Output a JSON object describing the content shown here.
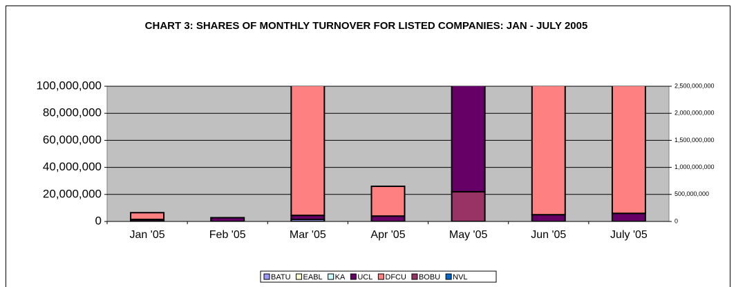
{
  "chart_data": {
    "type": "stacked_bar",
    "title": "CHART 3: SHARES OF MONTHLY TURNOVER FOR LISTED COMPANIES: JAN - JULY 2005",
    "categories": [
      "Jan '05",
      "Feb '05",
      "Mar '05",
      "Apr '05",
      "May '05",
      "Jun '05",
      "July '05"
    ],
    "series": [
      {
        "name": "BATU",
        "color": "#9999ff",
        "values": [
          300000,
          0,
          1500000,
          0,
          0,
          0,
          0
        ]
      },
      {
        "name": "EABL",
        "color": "#ffffcc",
        "values": [
          0,
          0,
          0,
          0,
          0,
          0,
          0
        ]
      },
      {
        "name": "KA",
        "color": "#ccffff",
        "values": [
          0,
          0,
          0,
          0,
          0,
          0,
          0
        ]
      },
      {
        "name": "UCL",
        "color": "#660066",
        "values": [
          1200000,
          2800000,
          3000000,
          4000000,
          100000000,
          5000000,
          6000000
        ]
      },
      {
        "name": "DFCU",
        "color": "#ff8080",
        "values": [
          5000000,
          0,
          120000000,
          22000000,
          0,
          120000000,
          120000000
        ]
      },
      {
        "name": "BOBU",
        "color": "#993366",
        "values": [
          0,
          0,
          0,
          0,
          22000000,
          0,
          0
        ]
      },
      {
        "name": "NVL",
        "color": "#0066cc",
        "values": [
          0,
          0,
          0,
          0,
          0,
          0,
          0
        ]
      }
    ],
    "stack_order": [
      "BATU",
      "EABL",
      "KA",
      "BOBU",
      "UCL",
      "DFCU",
      "NVL"
    ],
    "ylim": [
      0,
      100000000
    ],
    "yticks": [
      0,
      {
        "value": 20000000,
        "label": "20,000,000"
      },
      {
        "value": 40000000,
        "label": "40,000,000"
      },
      {
        "value": 60000000,
        "label": "60,000,000"
      },
      {
        "value": 80000000,
        "label": "80,000,000"
      },
      {
        "value": 100000000,
        "label": "100,000,000"
      }
    ],
    "y2lim": [
      0,
      2500000000
    ],
    "y2ticks": [
      0,
      {
        "value": 500000000,
        "label": "500,000,000"
      },
      {
        "value": 1000000000,
        "label": "1,000,000,000"
      },
      {
        "value": 1500000000,
        "label": "1,500,000,000"
      },
      {
        "value": 2000000000,
        "label": "2,000,000,000"
      },
      {
        "value": 2500000000,
        "label": "2,500,000,000"
      }
    ],
    "grid": true,
    "legend": "bottom"
  }
}
